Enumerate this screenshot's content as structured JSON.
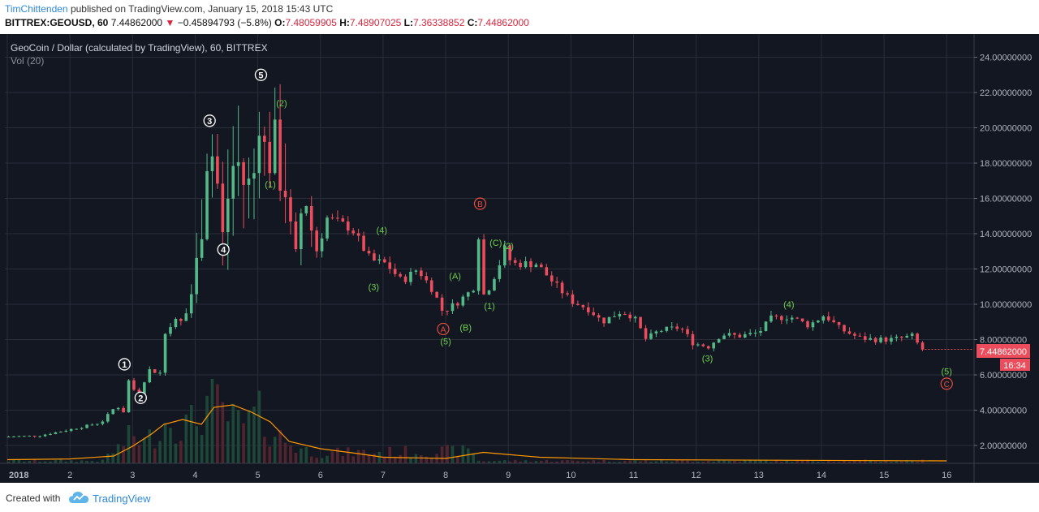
{
  "header": {
    "publisher": "TimChittenden",
    "published_text": "published on TradingView.com, January 15, 2018 15:43 UTC",
    "symbol": "BITTREX:GEOUSD, 60",
    "last": "7.44862000",
    "arrow": "▼",
    "change": "−0.45894793 (−5.8%)",
    "o_label": "O:",
    "o_value": "7.48059905",
    "h_label": "H:",
    "h_value": "7.48907025",
    "l_label": "L:",
    "l_value": "7.36338852",
    "c_label": "C:",
    "c_value": "7.44862000"
  },
  "chart_title": "GeoCoin / Dollar (calculated by TradingView), 60, BITTREX",
  "volume_label": "Vol (20)",
  "price_tag": {
    "value": "7.44862000",
    "countdown": "16:34"
  },
  "footer": {
    "created_with": "Created with",
    "brand": "TradingView"
  },
  "colors": {
    "up": "#53b987",
    "down": "#eb4d5c",
    "background": "#131722",
    "grid": "#2a2e39",
    "wave_white": "#ffffff",
    "wave_green": "#6fcf4e",
    "wave_red": "#e74c3c",
    "vol_ma": "#ff9800"
  },
  "chart_data": {
    "type": "candlestick",
    "title": "GeoCoin / Dollar (calculated by TradingView), 60, BITTREX",
    "x_ticks": [
      "2018",
      "2",
      "3",
      "4",
      "5",
      "6",
      "7",
      "8",
      "9",
      "10",
      "11",
      "12",
      "13",
      "14",
      "15",
      "16"
    ],
    "y_ticks": [
      "2.00000000",
      "4.00000000",
      "6.00000000",
      "8.00000000",
      "10.00000000",
      "12.00000000",
      "14.00000000",
      "16.00000000",
      "18.00000000",
      "20.00000000",
      "22.00000000",
      "24.00000000"
    ],
    "ylim": [
      0.9,
      25.2
    ],
    "xlim": [
      1,
      16.6
    ],
    "price_path": [
      [
        1.0,
        2.5
      ],
      [
        1.5,
        2.55
      ],
      [
        2.0,
        2.9
      ],
      [
        2.5,
        3.3
      ],
      [
        2.75,
        4.3
      ],
      [
        2.85,
        3.7
      ],
      [
        2.9,
        5.9
      ],
      [
        3.05,
        5.0
      ],
      [
        3.1,
        4.8
      ],
      [
        3.25,
        6.3
      ],
      [
        3.45,
        6.1
      ],
      [
        3.55,
        9.2
      ],
      [
        3.75,
        8.8
      ],
      [
        3.9,
        9.8
      ],
      [
        4.1,
        14.0
      ],
      [
        4.22,
        19.5
      ],
      [
        4.35,
        17.0
      ],
      [
        4.45,
        13.5
      ],
      [
        4.55,
        17.0
      ],
      [
        4.65,
        18.5
      ],
      [
        4.8,
        16.5
      ],
      [
        4.95,
        17.5
      ],
      [
        5.05,
        21.5
      ],
      [
        5.12,
        18.3
      ],
      [
        5.22,
        17.8
      ],
      [
        5.3,
        20.5
      ],
      [
        5.35,
        17.0
      ],
      [
        5.45,
        16.3
      ],
      [
        5.55,
        13.5
      ],
      [
        5.65,
        12.0
      ],
      [
        5.72,
        17.5
      ],
      [
        5.8,
        15.0
      ],
      [
        5.95,
        13.0
      ],
      [
        6.1,
        14.9
      ],
      [
        6.5,
        14.3
      ],
      [
        6.8,
        12.5
      ],
      [
        7.05,
        12.3
      ],
      [
        7.3,
        11.3
      ],
      [
        7.55,
        12.0
      ],
      [
        7.8,
        10.8
      ],
      [
        7.95,
        9.6
      ],
      [
        8.15,
        10.0
      ],
      [
        8.35,
        10.6
      ],
      [
        8.45,
        11.0
      ],
      [
        8.52,
        14.2
      ],
      [
        8.6,
        10.5
      ],
      [
        8.7,
        11.0
      ],
      [
        8.85,
        12.2
      ],
      [
        8.95,
        13.2
      ],
      [
        9.05,
        12.3
      ],
      [
        9.45,
        12.3
      ],
      [
        9.7,
        11.3
      ],
      [
        10.0,
        10.2
      ],
      [
        10.3,
        9.7
      ],
      [
        10.5,
        9.0
      ],
      [
        10.8,
        9.6
      ],
      [
        11.0,
        9.3
      ],
      [
        11.2,
        8.0
      ],
      [
        11.4,
        8.5
      ],
      [
        11.75,
        8.7
      ],
      [
        11.95,
        7.8
      ],
      [
        12.2,
        7.6
      ],
      [
        12.4,
        8.3
      ],
      [
        12.7,
        8.2
      ],
      [
        13.0,
        8.4
      ],
      [
        13.2,
        9.2
      ],
      [
        13.5,
        9.3
      ],
      [
        13.8,
        8.8
      ],
      [
        14.05,
        9.4
      ],
      [
        14.3,
        8.6
      ],
      [
        14.6,
        8.1
      ],
      [
        14.85,
        8.0
      ],
      [
        15.1,
        8.0
      ],
      [
        15.3,
        8.1
      ],
      [
        15.45,
        8.2
      ],
      [
        15.6,
        7.45
      ]
    ],
    "volume_ma": [
      [
        1.0,
        0.15
      ],
      [
        2.0,
        0.18
      ],
      [
        2.7,
        0.3
      ],
      [
        3.0,
        0.7
      ],
      [
        3.3,
        1.2
      ],
      [
        3.5,
        1.6
      ],
      [
        3.8,
        1.8
      ],
      [
        4.1,
        1.6
      ],
      [
        4.3,
        2.3
      ],
      [
        4.6,
        2.4
      ],
      [
        4.9,
        2.1
      ],
      [
        5.2,
        1.7
      ],
      [
        5.5,
        0.9
      ],
      [
        6.0,
        0.6
      ],
      [
        6.6,
        0.4
      ],
      [
        7.0,
        0.25
      ],
      [
        8.0,
        0.2
      ],
      [
        8.6,
        0.45
      ],
      [
        9.5,
        0.25
      ],
      [
        11.0,
        0.15
      ],
      [
        16.0,
        0.1
      ]
    ],
    "volume_bars": [
      [
        2.6,
        0.4
      ],
      [
        2.8,
        0.8
      ],
      [
        3.0,
        1.4
      ],
      [
        3.2,
        1.0
      ],
      [
        3.4,
        1.6
      ],
      [
        3.6,
        2.2
      ],
      [
        3.8,
        1.8
      ],
      [
        4.0,
        2.0
      ],
      [
        4.2,
        3.0
      ],
      [
        4.4,
        2.6
      ],
      [
        4.6,
        2.0
      ],
      [
        4.8,
        1.8
      ],
      [
        5.0,
        2.4
      ],
      [
        5.2,
        1.6
      ],
      [
        5.4,
        1.2
      ],
      [
        5.6,
        0.8
      ],
      [
        5.8,
        0.6
      ],
      [
        6.0,
        0.5
      ],
      [
        8.5,
        0.6
      ]
    ],
    "wave_labels": [
      {
        "text": "1",
        "x": 2.87,
        "y": 6.6,
        "style": "white"
      },
      {
        "text": "2",
        "x": 3.13,
        "y": 4.7,
        "style": "white"
      },
      {
        "text": "3",
        "x": 4.23,
        "y": 20.4,
        "style": "white"
      },
      {
        "text": "4",
        "x": 4.45,
        "y": 13.1,
        "style": "white"
      },
      {
        "text": "5",
        "x": 5.05,
        "y": 23.0,
        "style": "white"
      },
      {
        "text": "(2)",
        "x": 5.38,
        "y": 21.4,
        "style": "green"
      },
      {
        "text": "(1)",
        "x": 5.2,
        "y": 16.8,
        "style": "green"
      },
      {
        "text": "(4)",
        "x": 6.98,
        "y": 14.2,
        "style": "green"
      },
      {
        "text": "(3)",
        "x": 6.85,
        "y": 11.0,
        "style": "green"
      },
      {
        "text": "(A)",
        "x": 8.15,
        "y": 11.6,
        "style": "green"
      },
      {
        "text": "(B)",
        "x": 8.32,
        "y": 8.7,
        "style": "green"
      },
      {
        "text": "(5)",
        "x": 8.0,
        "y": 7.9,
        "style": "green"
      },
      {
        "text": "(1)",
        "x": 8.7,
        "y": 9.9,
        "style": "green"
      },
      {
        "text": "(C)",
        "x": 8.8,
        "y": 13.5,
        "style": "green"
      },
      {
        "text": "(2)",
        "x": 9.0,
        "y": 13.3,
        "style": "green"
      },
      {
        "text": "(3)",
        "x": 12.18,
        "y": 6.95,
        "style": "green"
      },
      {
        "text": "(4)",
        "x": 13.48,
        "y": 10.0,
        "style": "green"
      },
      {
        "text": "(5)",
        "x": 16.0,
        "y": 6.2,
        "style": "green"
      },
      {
        "text": "A",
        "x": 7.96,
        "y": 8.6,
        "style": "red"
      },
      {
        "text": "B",
        "x": 8.55,
        "y": 15.7,
        "style": "red"
      },
      {
        "text": "C",
        "x": 16.0,
        "y": 5.5,
        "style": "red"
      }
    ]
  }
}
